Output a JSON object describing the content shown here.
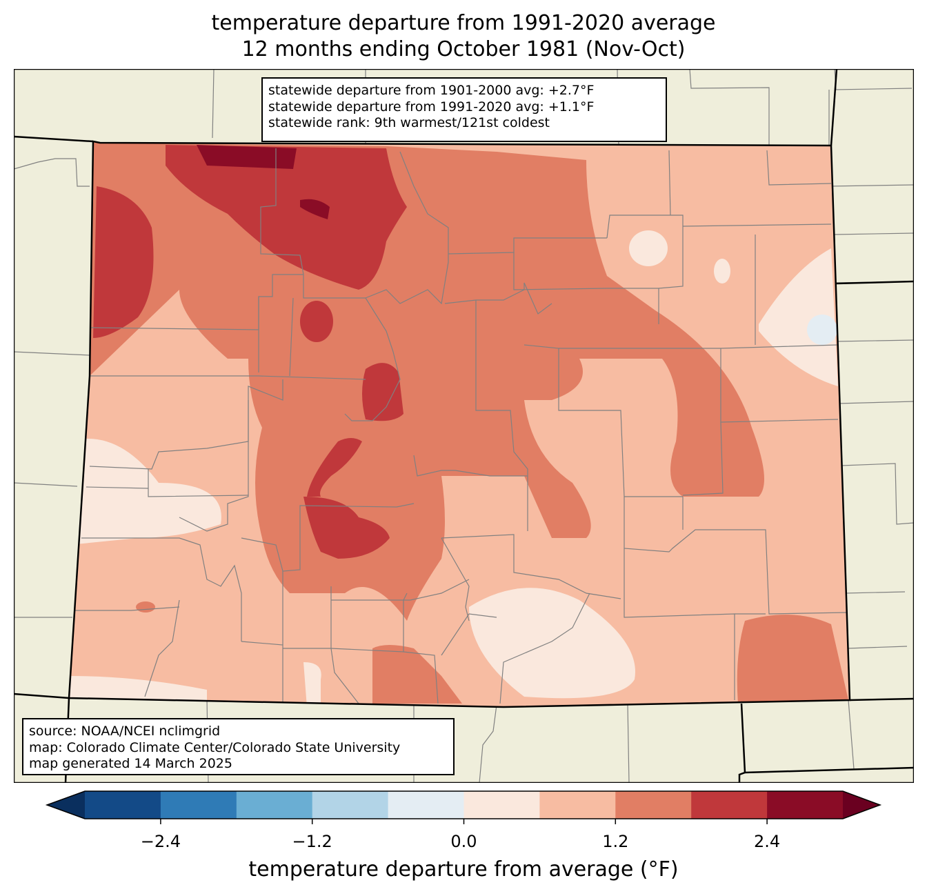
{
  "title": {
    "line1": "temperature departure from 1991-2020 average",
    "line2": "12 months ending October 1981 (Nov-Oct)"
  },
  "stats_box": {
    "line1": "statewide departure from 1901-2000 avg: +2.7°F",
    "line2": "statewide departure from 1991-2020 avg: +1.1°F",
    "line3": "statewide rank: 9th warmest/121st coldest"
  },
  "source_box": {
    "line1": "source: NOAA/NCEI nclimgrid",
    "line2": "map: Colorado Climate Center/Colorado State University",
    "line3": "map generated 14 March 2025"
  },
  "colorbar": {
    "label": "temperature departure from average (°F)",
    "ticks": [
      "−2.4",
      "−1.2",
      "0.0",
      "1.2",
      "2.4"
    ],
    "tick_values": [
      -2.4,
      -1.2,
      0.0,
      1.2,
      2.4
    ],
    "bounds": [
      -3.0,
      -2.4,
      -1.8,
      -1.2,
      -0.6,
      0.0,
      0.6,
      1.2,
      1.8,
      2.4,
      3.0
    ],
    "colors": [
      "#134a87",
      "#2f7bb6",
      "#6aaed3",
      "#b2d4e7",
      "#e4edf3",
      "#fae8dd",
      "#f7bca2",
      "#e17e64",
      "#c0383b",
      "#8a0c26"
    ],
    "under_color": "#0a2f5e",
    "over_color": "#6a0020"
  },
  "map_colors": {
    "background": "#efeedb",
    "border": "#000000",
    "county_lines": "#808080"
  }
}
